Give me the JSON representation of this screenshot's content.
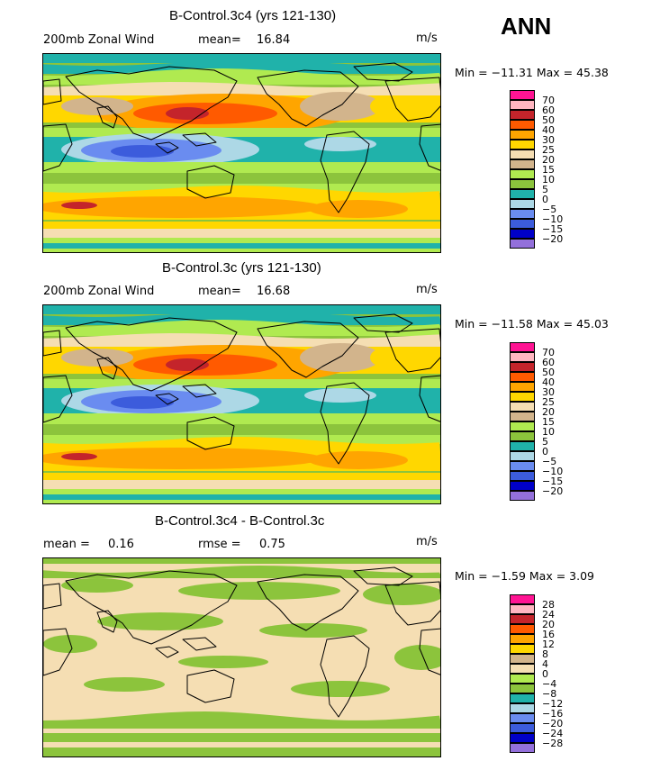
{
  "season": "ANN",
  "continent_icon": "continent-outline-icon",
  "panels": [
    {
      "title": "B-Control.3c4 (yrs 121-130)",
      "field": "200mb Zonal Wind",
      "stat1_label": "mean=",
      "stat1_value": "16.84",
      "stat2_label": "",
      "stat2_value": "",
      "units": "m/s",
      "min_max": "Min = −11.31 Max = 45.38",
      "legend_labels": [
        "70",
        "60",
        "50",
        "40",
        "30",
        "25",
        "20",
        "15",
        "10",
        "5",
        "0",
        "−5",
        "−10",
        "−15",
        "−20"
      ],
      "legend_colors": [
        "#ff1493",
        "#ffb6c1",
        "#c4242b",
        "#ff5a00",
        "#ffa500",
        "#ffd700",
        "#f5deb3",
        "#d2b48c",
        "#b0ea50",
        "#8cc43c",
        "#20b2aa",
        "#add8e6",
        "#6a8cf0",
        "#3c5cdc",
        "#0000c8",
        "#9370db"
      ]
    },
    {
      "title": "B-Control.3c (yrs 121-130)",
      "field": "200mb Zonal Wind",
      "stat1_label": "mean=",
      "stat1_value": "16.68",
      "stat2_label": "",
      "stat2_value": "",
      "units": "m/s",
      "min_max": "Min = −11.58 Max = 45.03",
      "legend_labels": [
        "70",
        "60",
        "50",
        "40",
        "30",
        "25",
        "20",
        "15",
        "10",
        "5",
        "0",
        "−5",
        "−10",
        "−15",
        "−20"
      ],
      "legend_colors": [
        "#ff1493",
        "#ffb6c1",
        "#c4242b",
        "#ff5a00",
        "#ffa500",
        "#ffd700",
        "#f5deb3",
        "#d2b48c",
        "#b0ea50",
        "#8cc43c",
        "#20b2aa",
        "#add8e6",
        "#6a8cf0",
        "#3c5cdc",
        "#0000c8",
        "#9370db"
      ]
    },
    {
      "title": "B-Control.3c4 - B-Control.3c",
      "field": "",
      "stat1_label": "mean =",
      "stat1_value": "0.16",
      "stat2_label": "rmse =",
      "stat2_value": "0.75",
      "units": "m/s",
      "min_max": "Min = −1.59 Max = 3.09",
      "legend_labels": [
        "28",
        "24",
        "20",
        "16",
        "12",
        "8",
        "4",
        "0",
        "−4",
        "−8",
        "−12",
        "−16",
        "−20",
        "−24",
        "−28"
      ],
      "legend_colors": [
        "#ff1493",
        "#ffb6c1",
        "#c4242b",
        "#ff5a00",
        "#ffa500",
        "#ffd700",
        "#d2b48c",
        "#f5deb3",
        "#b0ea50",
        "#8cc43c",
        "#20b2aa",
        "#add8e6",
        "#6a8cf0",
        "#3c5cdc",
        "#0000c8",
        "#9370db"
      ]
    }
  ]
}
